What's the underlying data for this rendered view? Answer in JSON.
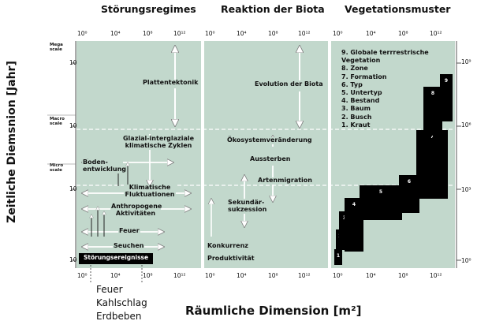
{
  "titles": {
    "stoerung": "Störungsregimes",
    "reaktion": "Reaktion der Biota",
    "vegetation": "Vegetationsmuster"
  },
  "axes": {
    "y_label": "Zeitliche Diemsnion [Jahr]",
    "x_label": "Räumliche Dimension [m²]"
  },
  "scales": {
    "mega": "Mega scale",
    "macro": "Macro scale",
    "micro": "Micro scale"
  },
  "ticks": {
    "top": [
      "10⁰",
      "10⁴",
      "10⁸",
      "10¹²"
    ],
    "bottom": [
      "10⁰",
      "10⁴",
      "10⁸",
      "10¹²"
    ],
    "left": [
      "10³",
      "10⁰",
      "10¹",
      "10⁰"
    ],
    "right": [
      "10⁹",
      "10⁶",
      "10³",
      "10⁰"
    ]
  },
  "stoerung_labels": {
    "plattentektonik": "Plattentektonik",
    "glazial": "Glazial-interglaziale klimatische Zyklen",
    "boden": "Boden- entwicklung",
    "klima": "Klimatische Fluktuationen",
    "anthro": "Anthropogene Aktivitäten",
    "feuer": "Feuer",
    "seuchen": "Seuchen",
    "stoerungsereignisse": "Störungsereignisse"
  },
  "reaktion_labels": {
    "evolution": "Evolution der Biota",
    "oeko": "Ökosystemveränderung",
    "aussterben": "Aussterben",
    "artenmigration": "Artenmigration",
    "sukzession": "Sekundär- sukzession",
    "konkurrenz": "Konkurrenz",
    "produktivitaet": "Produktivität"
  },
  "vegetation_levels": [
    "9. Globale terrrestrische Vegetation",
    "8. Zone",
    "7. Formation",
    "6. Typ",
    "5. Untertyp",
    "4. Bestand",
    "3. Baum",
    "2. Busch",
    "1. Kraut"
  ],
  "box_numbers": [
    "1",
    "2",
    "3",
    "4",
    "5",
    "6",
    "7",
    "8",
    "9"
  ],
  "events": [
    "Feuer",
    "Kahlschlag",
    "Erdbeben"
  ],
  "colors": {
    "panel": "#c2d8cc",
    "box": "#000000",
    "arrow": "#ffffff"
  }
}
